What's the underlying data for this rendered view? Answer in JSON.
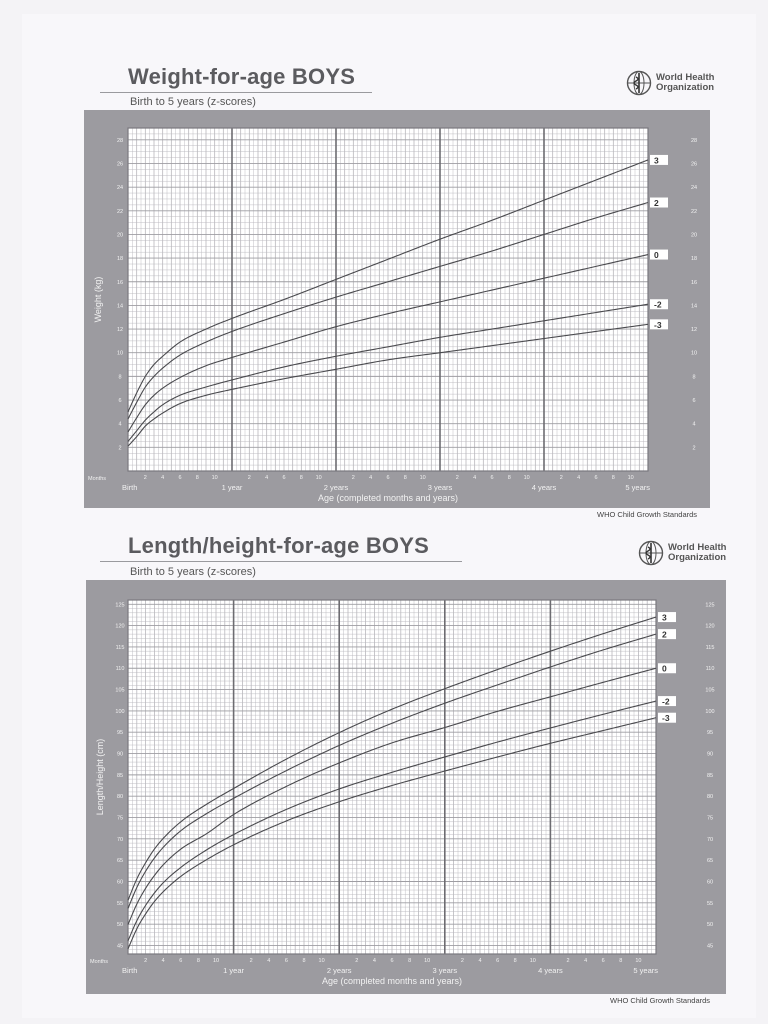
{
  "who": {
    "line1": "World Health",
    "line2": "Organization"
  },
  "colors": {
    "frame": "#9c9ba0",
    "plot": "#ffffff",
    "grid_minor": "#b9b8bd",
    "grid_major": "#6d6c71",
    "curve": "#4a4a4e"
  },
  "chart_data": [
    {
      "type": "line",
      "title": "Weight-for-age BOYS",
      "subtitle": "Birth to 5 years (z-scores)",
      "xlabel": "Age (completed months and years)",
      "ylabel": "Weight (kg)",
      "footer": "WHO Child Growth Standards",
      "xlim": [
        0,
        60
      ],
      "ylim": [
        0,
        29
      ],
      "y_ticks": [
        2,
        4,
        6,
        8,
        10,
        12,
        14,
        16,
        18,
        20,
        22,
        24,
        26,
        28
      ],
      "months_label": "Months",
      "x_major_labels": [
        {
          "month": 0,
          "label": "Birth"
        },
        {
          "month": 12,
          "label": "1 year"
        },
        {
          "month": 24,
          "label": "2 years"
        },
        {
          "month": 36,
          "label": "3 years"
        },
        {
          "month": 48,
          "label": "4 years"
        },
        {
          "month": 60,
          "label": "5 years"
        }
      ],
      "x_minor_labels": [
        "2",
        "4",
        "6",
        "8",
        "10"
      ],
      "grid": true,
      "x": [
        0,
        1,
        2,
        3,
        4,
        6,
        9,
        12,
        18,
        24,
        30,
        36,
        42,
        48,
        54,
        60
      ],
      "series": [
        {
          "name": "3",
          "values": [
            5.0,
            6.6,
            8.0,
            9.0,
            9.7,
            10.9,
            12.0,
            12.9,
            14.5,
            16.2,
            17.9,
            19.6,
            21.2,
            22.9,
            24.6,
            26.3
          ]
        },
        {
          "name": "2",
          "values": [
            4.4,
            5.8,
            7.1,
            8.0,
            8.7,
            9.8,
            10.9,
            11.8,
            13.3,
            14.7,
            16.0,
            17.3,
            18.6,
            20.0,
            21.4,
            22.7
          ]
        },
        {
          "name": "0",
          "values": [
            3.3,
            4.5,
            5.6,
            6.4,
            7.0,
            7.9,
            8.9,
            9.6,
            10.9,
            12.2,
            13.3,
            14.3,
            15.3,
            16.3,
            17.3,
            18.3
          ]
        },
        {
          "name": "-2",
          "values": [
            2.5,
            3.4,
            4.3,
            5.0,
            5.6,
            6.4,
            7.1,
            7.7,
            8.8,
            9.7,
            10.5,
            11.3,
            12.0,
            12.7,
            13.4,
            14.1
          ]
        },
        {
          "name": "-3",
          "values": [
            2.1,
            2.9,
            3.8,
            4.4,
            4.9,
            5.7,
            6.4,
            6.9,
            7.8,
            8.6,
            9.4,
            10.0,
            10.6,
            11.2,
            11.8,
            12.4
          ]
        }
      ]
    },
    {
      "type": "line",
      "title": "Length/height-for-age BOYS",
      "subtitle": "Birth to 5 years (z-scores)",
      "xlabel": "Age (completed months and years)",
      "ylabel": "Length/Height (cm)",
      "footer": "WHO Child Growth Standards",
      "xlim": [
        0,
        60
      ],
      "ylim": [
        43,
        126
      ],
      "y_ticks": [
        45,
        50,
        55,
        60,
        65,
        70,
        75,
        80,
        85,
        90,
        95,
        100,
        105,
        110,
        115,
        120,
        125
      ],
      "months_label": "Months",
      "x_major_labels": [
        {
          "month": 0,
          "label": "Birth"
        },
        {
          "month": 12,
          "label": "1 year"
        },
        {
          "month": 24,
          "label": "2 years"
        },
        {
          "month": 36,
          "label": "3 years"
        },
        {
          "month": 48,
          "label": "4 years"
        },
        {
          "month": 60,
          "label": "5 years"
        }
      ],
      "x_minor_labels": [
        "2",
        "4",
        "6",
        "8",
        "10"
      ],
      "grid": true,
      "x": [
        0,
        1,
        2,
        3,
        4,
        6,
        9,
        12,
        18,
        24,
        30,
        36,
        42,
        48,
        54,
        60
      ],
      "series": [
        {
          "name": "3",
          "values": [
            55.6,
            60.6,
            64.4,
            67.6,
            70.1,
            74.0,
            78.2,
            81.8,
            88.7,
            94.9,
            100.4,
            105.2,
            109.7,
            114.0,
            118.1,
            122.0
          ]
        },
        {
          "name": "2",
          "values": [
            53.7,
            58.6,
            62.4,
            65.5,
            68.0,
            71.9,
            76.0,
            79.5,
            86.0,
            91.9,
            97.1,
            101.8,
            106.1,
            110.3,
            114.3,
            118.0
          ]
        },
        {
          "name": "0",
          "values": [
            49.9,
            54.7,
            58.4,
            61.4,
            63.9,
            67.6,
            71.3,
            75.7,
            82.3,
            87.8,
            92.5,
            96.1,
            99.9,
            103.3,
            106.7,
            110.0
          ]
        },
        {
          "name": "-2",
          "values": [
            46.1,
            50.8,
            54.4,
            57.3,
            59.7,
            63.3,
            67.5,
            71.0,
            76.9,
            81.7,
            85.6,
            89.2,
            92.7,
            96.0,
            99.2,
            102.3
          ]
        },
        {
          "name": "-3",
          "values": [
            44.2,
            48.9,
            52.4,
            55.3,
            57.6,
            61.2,
            65.2,
            68.6,
            74.2,
            78.7,
            82.5,
            85.9,
            89.2,
            92.4,
            95.4,
            98.4
          ]
        }
      ]
    }
  ]
}
